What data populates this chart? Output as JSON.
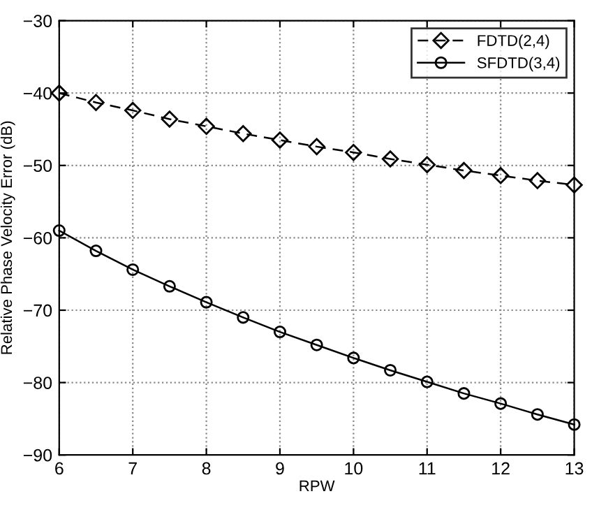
{
  "chart_data": {
    "type": "line",
    "xlabel": "RPW",
    "ylabel": "Relative Phase Velocity Error (dB)",
    "x": [
      6,
      6.5,
      7,
      7.5,
      8,
      8.5,
      9,
      9.5,
      10,
      10.5,
      11,
      11.5,
      12,
      12.5,
      13
    ],
    "series": [
      {
        "name": "FDTD(2,4)",
        "color": "#000000",
        "marker": "diamond",
        "line_style": "dashed",
        "values": [
          -40,
          -41.3,
          -42.4,
          -43.6,
          -44.6,
          -45.6,
          -46.5,
          -47.4,
          -48.2,
          -49.1,
          -49.9,
          -50.7,
          -51.4,
          -52.1,
          -52.7
        ]
      },
      {
        "name": "SFDTD(3,4)",
        "color": "#000000",
        "marker": "circle",
        "line_style": "solid",
        "values": [
          -59.0,
          -61.8,
          -64.4,
          -66.7,
          -68.9,
          -71.0,
          -73.0,
          -74.8,
          -76.6,
          -78.3,
          -79.9,
          -81.5,
          -82.9,
          -84.4,
          -85.8
        ]
      }
    ],
    "xlim": [
      6,
      13
    ],
    "xticks": [
      6,
      7,
      8,
      9,
      10,
      11,
      12,
      13
    ],
    "ylim": [
      -90,
      -30
    ],
    "yticks": [
      {
        "value": -90,
        "label": "−90"
      },
      {
        "value": -80,
        "label": "−80"
      },
      {
        "value": -70,
        "label": "−70"
      },
      {
        "value": -60,
        "label": "−60"
      },
      {
        "value": -50,
        "label": "−50"
      },
      {
        "value": -40,
        "label": "−40"
      },
      {
        "value": -30,
        "label": "−30"
      }
    ],
    "grid": true,
    "legend": "top right"
  }
}
